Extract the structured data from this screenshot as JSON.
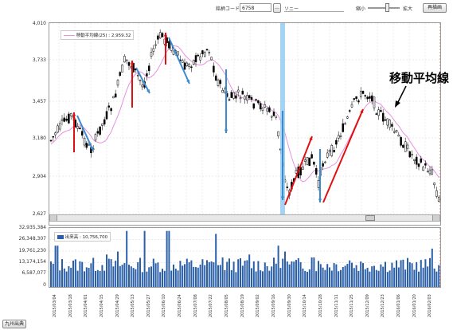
{
  "toolbar": {
    "code_label": "銘柄コード:",
    "code_value": "6758",
    "lookup_button": "...",
    "company_name": "ソニー",
    "zoom_out_label": "縮小",
    "zoom_in_label": "拡大",
    "redraw_button": "再描画"
  },
  "price_panel": {
    "y_ticks": [
      "4,010",
      "3,733",
      "3,457",
      "3,180",
      "2,904",
      "2,627"
    ],
    "legend_ma": "移動平均線(25) : 2,959.32",
    "annotation": "移動平均線",
    "colors": {
      "up_arrow": "#e01010",
      "down_arrow": "#3a8ad0",
      "ma_line": "#e890e0",
      "candle": "#000000",
      "cursor": "#8ec8f0"
    }
  },
  "volume_panel": {
    "y_ticks": [
      "32,935,384",
      "26,348,307",
      "19,761,230",
      "13,174,154",
      "6,587,077",
      "0"
    ],
    "legend": "出来高 : 10,756,700",
    "bar_color": "#2a5fa8"
  },
  "x_labels": [
    "2015/03/04",
    "2015/03/18",
    "2015/04/01",
    "2015/04/15",
    "2015/04/29",
    "2015/05/13",
    "2015/05/27",
    "2015/06/10",
    "2015/06/24",
    "2015/07/08",
    "2015/07/22",
    "2015/08/05",
    "2015/08/19",
    "2015/09/02",
    "2015/09/16",
    "2015/09/30",
    "2015/10/14",
    "2015/10/28",
    "2015/11/11",
    "2015/11/25",
    "2015/12/09",
    "2015/12/23",
    "2016/01/06",
    "2016/01/20",
    "2016/02/03"
  ],
  "footer": {
    "button": "九州出典"
  },
  "chart_data": [
    {
      "type": "candlestick",
      "title": "",
      "y_ticks": [
        4010,
        3733,
        3457,
        3180,
        2904,
        2627
      ],
      "ylim": [
        2627,
        4010
      ],
      "series": [
        {
          "name": "移動平均線(25)",
          "last_value": 2959.32
        }
      ]
    },
    {
      "type": "bar",
      "title": "",
      "y_ticks": [
        32935384,
        26348307,
        19761230,
        13174154,
        6587077,
        0
      ],
      "ylim": [
        0,
        32935384
      ],
      "series": [
        {
          "name": "出来高",
          "last_value": 10756700
        }
      ]
    }
  ]
}
